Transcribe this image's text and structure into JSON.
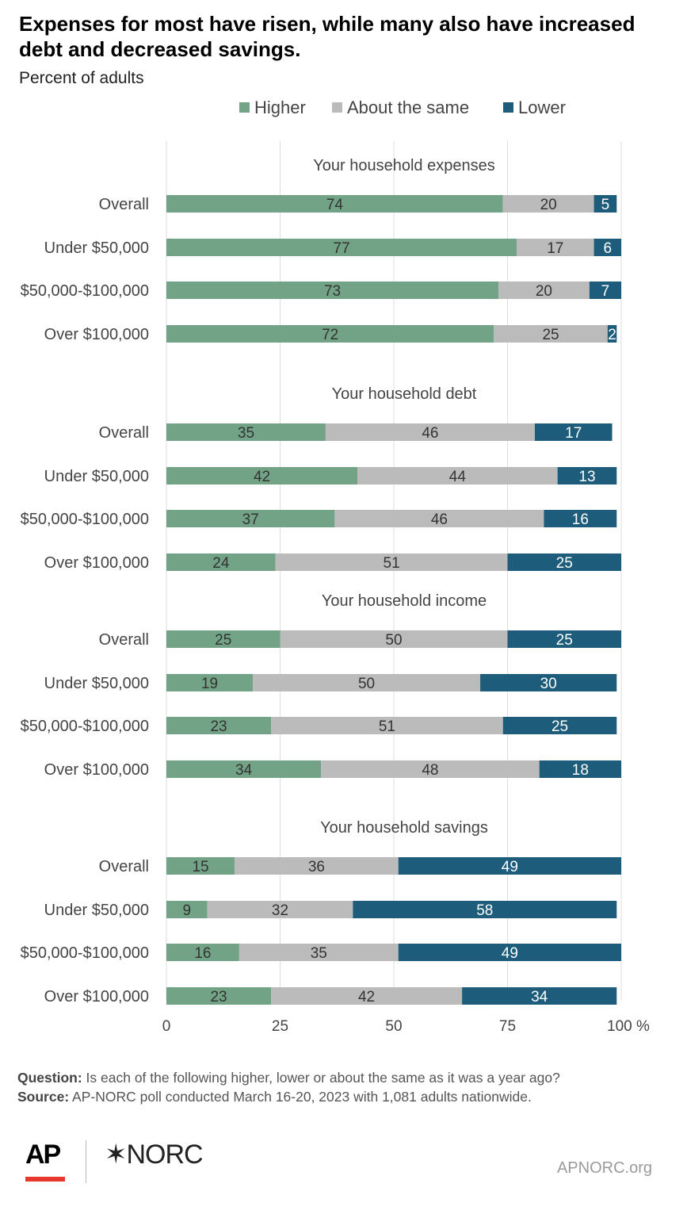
{
  "title": "Expenses for most have risen, while many also have increased debt and decreased savings.",
  "subtitle": "Percent of adults",
  "colors": {
    "higher": "#72a387",
    "same": "#bbbbbb",
    "lower": "#1d5d7b",
    "grid": "#dddddd"
  },
  "chart_data": {
    "type": "bar",
    "orientation": "horizontal",
    "stacked": true,
    "legend": {
      "position": "top-right",
      "entries": [
        "Higher",
        "About the same",
        "Lower"
      ]
    },
    "xlim": [
      0,
      100
    ],
    "xticks": [
      "0",
      "25",
      "50",
      "75",
      "100 %"
    ],
    "grid": true,
    "panels": [
      {
        "title": "Your household expenses",
        "rows": [
          {
            "label": "Overall",
            "higher": 74,
            "same": 20,
            "lower": 5
          },
          {
            "label": "Under $50,000",
            "higher": 77,
            "same": 17,
            "lower": 6
          },
          {
            "label": "$50,000-$100,000",
            "higher": 73,
            "same": 20,
            "lower": 7
          },
          {
            "label": "Over $100,000",
            "higher": 72,
            "same": 25,
            "lower": 2
          }
        ]
      },
      {
        "title": "Your household debt",
        "rows": [
          {
            "label": "Overall",
            "higher": 35,
            "same": 46,
            "lower": 17
          },
          {
            "label": "Under $50,000",
            "higher": 42,
            "same": 44,
            "lower": 13
          },
          {
            "label": "$50,000-$100,000",
            "higher": 37,
            "same": 46,
            "lower": 16
          },
          {
            "label": "Over $100,000",
            "higher": 24,
            "same": 51,
            "lower": 25
          }
        ]
      },
      {
        "title": "Your household income",
        "rows": [
          {
            "label": "Overall",
            "higher": 25,
            "same": 50,
            "lower": 25
          },
          {
            "label": "Under $50,000",
            "higher": 19,
            "same": 50,
            "lower": 30
          },
          {
            "label": "$50,000-$100,000",
            "higher": 23,
            "same": 51,
            "lower": 25
          },
          {
            "label": "Over $100,000",
            "higher": 34,
            "same": 48,
            "lower": 18
          }
        ]
      },
      {
        "title": "Your household savings",
        "rows": [
          {
            "label": "Overall",
            "higher": 15,
            "same": 36,
            "lower": 49
          },
          {
            "label": "Under $50,000",
            "higher": 9,
            "same": 32,
            "lower": 58
          },
          {
            "label": "$50,000-$100,000",
            "higher": 16,
            "same": 35,
            "lower": 49
          },
          {
            "label": "Over $100,000",
            "higher": 23,
            "same": 42,
            "lower": 34
          }
        ]
      }
    ]
  },
  "footer": {
    "question_label": "Question:",
    "question": " Is each of the following higher, lower or about the same as it was a year ago?",
    "source_label": "Source:",
    "source": "  AP-NORC poll conducted March 16-20, 2023 with 1,081 adults nationwide.",
    "ap_logo": "AP",
    "norc_logo": "✶NORC",
    "url": "APNORC.org"
  }
}
